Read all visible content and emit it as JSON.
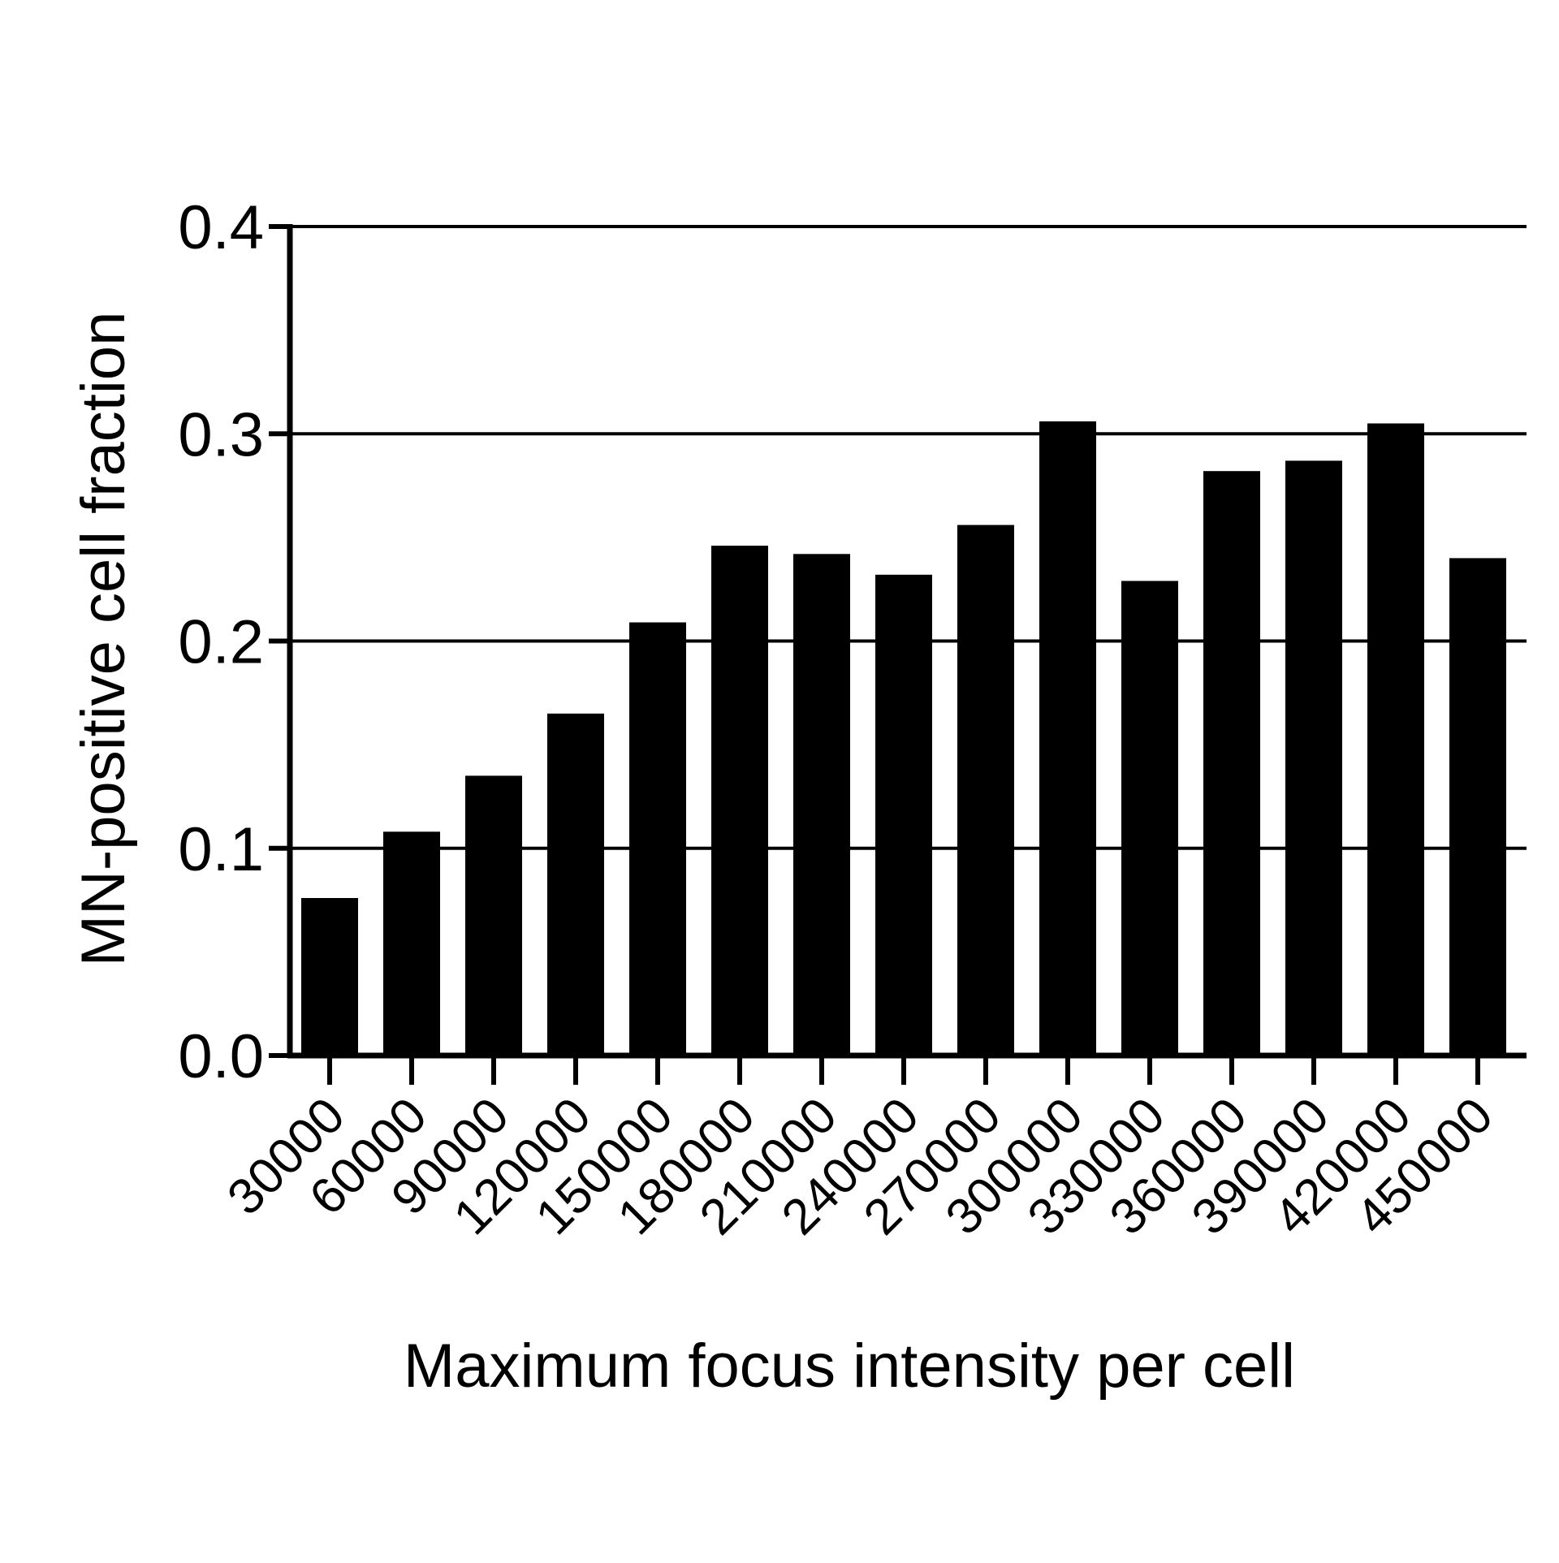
{
  "chart_data": {
    "type": "bar",
    "title": "",
    "xlabel": "Maximum focus intensity per cell",
    "ylabel": "MN-positive cell fraction",
    "categories": [
      "30000",
      "60000",
      "90000",
      "120000",
      "150000",
      "180000",
      "210000",
      "240000",
      "270000",
      "300000",
      "330000",
      "360000",
      "390000",
      "420000",
      "450000"
    ],
    "values": [
      0.076,
      0.108,
      0.135,
      0.165,
      0.209,
      0.246,
      0.242,
      0.232,
      0.256,
      0.306,
      0.229,
      0.282,
      0.287,
      0.305,
      0.24
    ],
    "ylim": [
      0,
      0.4
    ],
    "yticks": [
      "0.0",
      "0.1",
      "0.2",
      "0.3",
      "0.4"
    ],
    "ytick_values": [
      0,
      0.1,
      0.2,
      0.3,
      0.4
    ],
    "grid": "horizontal",
    "legend": "none",
    "bar_color": "#000000",
    "x_tick_rotation": "45-degrees"
  }
}
